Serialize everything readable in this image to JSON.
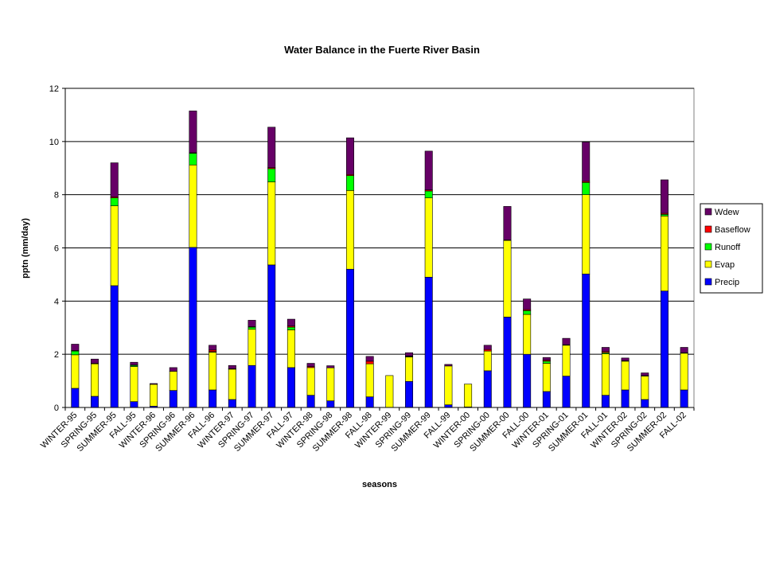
{
  "chart_data": {
    "type": "bar",
    "stacked": true,
    "title": "Water Balance in the Fuerte River Basin",
    "xlabel": "seasons",
    "ylabel": "pptn (mm/day)",
    "ylim": [
      0,
      12
    ],
    "yticks": [
      0,
      2,
      4,
      6,
      8,
      10,
      12
    ],
    "grid": true,
    "legend_position": "right",
    "categories": [
      "WINTER-95",
      "SPRING-95",
      "SUMMER-95",
      "FALL-95",
      "WINTER-96",
      "SPRING-96",
      "SUMMER-96",
      "FALL-96",
      "WINTER-97",
      "SPRING-97",
      "SUMMER-97",
      "FALL-97",
      "WINTER-98",
      "SPRING-98",
      "SUMMER-98",
      "FALL-98",
      "WINTER-99",
      "SPRING-99",
      "SUMMER-99",
      "FALL-99",
      "WINTER-00",
      "SPRING-00",
      "SUMMER-00",
      "FALL-00",
      "WINTER-01",
      "SPRING-01",
      "SUMMER-01",
      "FALL-01",
      "WINTER-02",
      "SPRING-02",
      "SUMMER-02",
      "FALL-02"
    ],
    "series": [
      {
        "name": "Precip",
        "color": "#0000ff",
        "values": [
          0.72,
          0.42,
          4.58,
          0.22,
          0.05,
          0.64,
          6.02,
          0.66,
          0.3,
          1.58,
          5.36,
          1.5,
          0.46,
          0.25,
          5.2,
          0.4,
          0.0,
          0.98,
          4.9,
          0.1,
          0.02,
          1.38,
          3.4,
          2.0,
          0.6,
          1.18,
          5.02,
          0.46,
          0.66,
          0.3,
          4.38,
          0.66
        ]
      },
      {
        "name": "Evap",
        "color": "#ffff00",
        "values": [
          1.26,
          1.22,
          3.0,
          1.32,
          0.82,
          0.72,
          3.1,
          1.42,
          1.14,
          1.36,
          3.12,
          1.42,
          1.04,
          1.24,
          2.96,
          1.24,
          1.2,
          0.92,
          2.98,
          1.46,
          0.86,
          0.74,
          2.88,
          1.5,
          1.06,
          1.16,
          2.98,
          1.56,
          1.08,
          0.88,
          2.82,
          1.38
        ]
      },
      {
        "name": "Runoff",
        "color": "#00ff00",
        "values": [
          0.14,
          0.0,
          0.3,
          0.04,
          0.0,
          0.0,
          0.44,
          0.02,
          0.0,
          0.08,
          0.5,
          0.1,
          0.0,
          0.0,
          0.56,
          0.0,
          0.0,
          0.02,
          0.26,
          0.0,
          0.0,
          0.0,
          0.0,
          0.14,
          0.08,
          0.0,
          0.46,
          0.04,
          0.0,
          0.0,
          0.06,
          0.0
        ]
      },
      {
        "name": "Baseflow",
        "color": "#ff0000",
        "values": [
          0.02,
          0.02,
          0.04,
          0.02,
          0.0,
          0.0,
          0.02,
          0.06,
          0.02,
          0.02,
          0.04,
          0.04,
          0.04,
          0.0,
          0.04,
          0.1,
          0.0,
          0.02,
          0.04,
          0.0,
          0.0,
          0.06,
          0.02,
          0.04,
          0.04,
          0.02,
          0.04,
          0.04,
          0.02,
          0.02,
          0.04,
          0.02
        ]
      },
      {
        "name": "Wdew",
        "color": "#660066",
        "values": [
          0.24,
          0.16,
          1.28,
          0.1,
          0.03,
          0.14,
          1.57,
          0.18,
          0.12,
          0.24,
          1.52,
          0.26,
          0.12,
          0.08,
          1.38,
          0.18,
          0.0,
          0.12,
          1.46,
          0.06,
          0.0,
          0.16,
          1.26,
          0.4,
          0.1,
          0.24,
          1.48,
          0.16,
          0.1,
          0.1,
          1.26,
          0.2
        ]
      }
    ]
  }
}
